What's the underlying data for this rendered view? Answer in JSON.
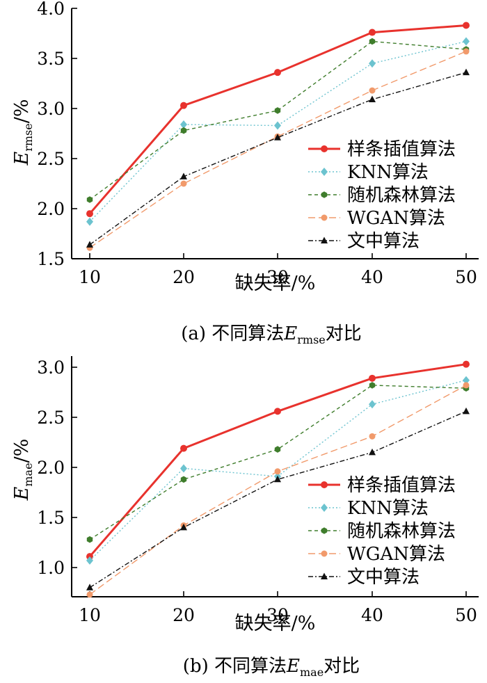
{
  "chart_data": [
    {
      "type": "line",
      "caption_prefix": "(a)  不同算法",
      "caption_var": "E",
      "caption_var_sub": "rmse",
      "caption_suffix": "对比",
      "xlabel": "缺失率/%",
      "ylabel_var": "E",
      "ylabel_sub": "rmse",
      "ylabel_unit": "/%",
      "x": [
        10,
        20,
        30,
        40,
        50
      ],
      "xticks": [
        "10",
        "20",
        "30",
        "40",
        "50"
      ],
      "ylim": [
        1.5,
        4.0
      ],
      "yticks": [
        "1.5",
        "2.0",
        "2.5",
        "3.0",
        "3.5",
        "4.0"
      ],
      "legend_position": "right",
      "series": [
        {
          "name": "样条插值算法",
          "values": [
            1.95,
            3.03,
            3.36,
            3.76,
            3.83
          ],
          "color": "#e8322d",
          "marker": "circle",
          "dash": "solid"
        },
        {
          "name": "KNN算法",
          "values": [
            1.87,
            2.84,
            2.83,
            3.45,
            3.67
          ],
          "color": "#6cc3cf",
          "marker": "diamond",
          "dash": "dotted"
        },
        {
          "name": "随机森林算法",
          "values": [
            2.09,
            2.78,
            2.98,
            3.67,
            3.59
          ],
          "color": "#3f7d2c",
          "marker": "hexagon",
          "dash": "dashed"
        },
        {
          "name": "WGAN算法",
          "values": [
            1.61,
            2.25,
            2.72,
            3.18,
            3.57
          ],
          "color": "#f19a6b",
          "marker": "circle",
          "dash": "longdash"
        },
        {
          "name": "文中算法",
          "values": [
            1.64,
            2.32,
            2.71,
            3.09,
            3.36
          ],
          "color": "#111111",
          "marker": "triangle",
          "dash": "dashdot"
        }
      ]
    },
    {
      "type": "line",
      "caption_prefix": "(b)  不同算法",
      "caption_var": "E",
      "caption_var_sub": "mae",
      "caption_suffix": "对比",
      "xlabel": "缺失率/%",
      "ylabel_var": "E",
      "ylabel_sub": "mae",
      "ylabel_unit": "/%",
      "x": [
        10,
        20,
        30,
        40,
        50
      ],
      "xticks": [
        "10",
        "20",
        "30",
        "40",
        "50"
      ],
      "ylim": [
        0.7,
        3.1
      ],
      "yticks": [
        "1.0",
        "1.5",
        "2.0",
        "2.5",
        "3.0"
      ],
      "legend_position": "right",
      "series": [
        {
          "name": "样条插值算法",
          "values": [
            1.11,
            2.19,
            2.56,
            2.89,
            3.03
          ],
          "color": "#e8322d",
          "marker": "circle",
          "dash": "solid"
        },
        {
          "name": "KNN算法",
          "values": [
            1.07,
            1.99,
            1.91,
            2.63,
            2.87
          ],
          "color": "#6cc3cf",
          "marker": "diamond",
          "dash": "dotted"
        },
        {
          "name": "随机森林算法",
          "values": [
            1.28,
            1.88,
            2.18,
            2.82,
            2.79
          ],
          "color": "#3f7d2c",
          "marker": "hexagon",
          "dash": "dashed"
        },
        {
          "name": "WGAN算法",
          "values": [
            0.73,
            1.42,
            1.96,
            2.31,
            2.82
          ],
          "color": "#f19a6b",
          "marker": "circle",
          "dash": "longdash"
        },
        {
          "name": "文中算法",
          "values": [
            0.8,
            1.4,
            1.88,
            2.15,
            2.56
          ],
          "color": "#111111",
          "marker": "triangle",
          "dash": "dashdot"
        }
      ]
    }
  ]
}
